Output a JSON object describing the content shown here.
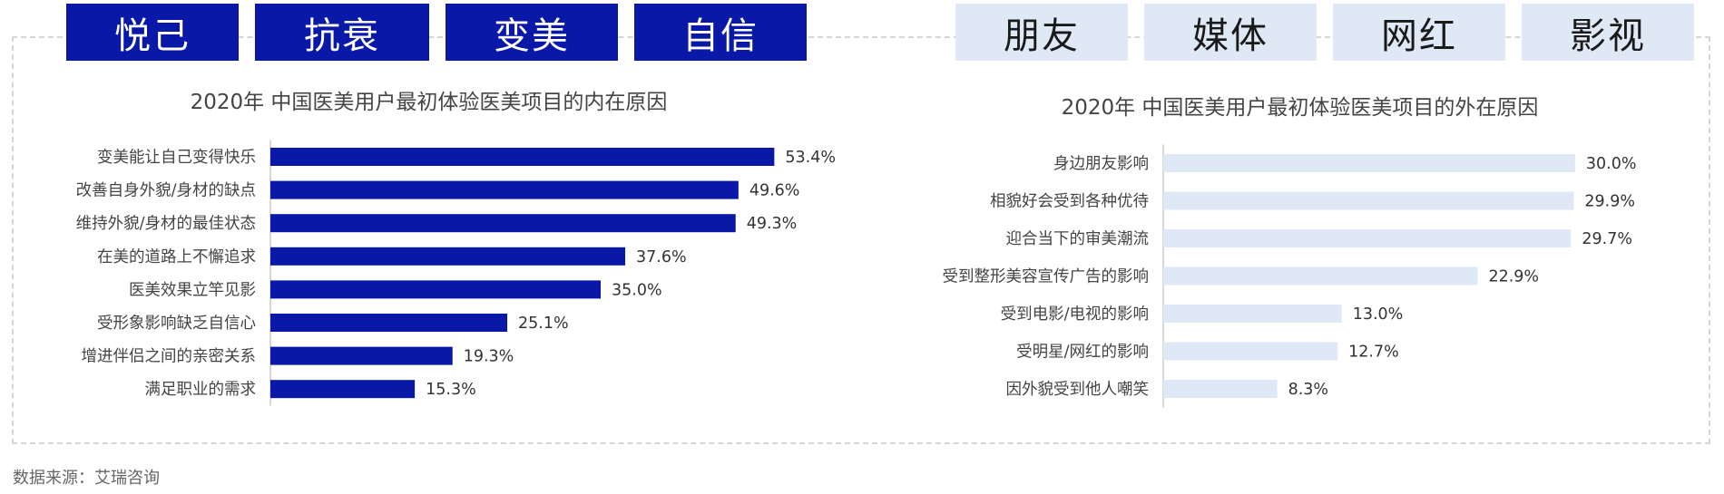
{
  "tags_left": [
    "悦己",
    "抗衰",
    "变美",
    "自信"
  ],
  "tags_right": [
    "朋友",
    "媒体",
    "网红",
    "影视"
  ],
  "source": "数据来源：艾瑞咨询",
  "colors": {
    "dark_bar": "#0a18a8",
    "light_bar": "#dfe9f5"
  },
  "chart_data": [
    {
      "type": "bar",
      "orientation": "horizontal",
      "title": "2020年 中国医美用户最初体验医美项目的内在原因",
      "categories": [
        "变美能让自己变得快乐",
        "改善自身外貌/身材的缺点",
        "维持外貌/身材的最佳状态",
        "在美的道路上不懈追求",
        "医美效果立竿见影",
        "受形象影响缺乏自信心",
        "增进伴侣之间的亲密关系",
        "满足职业的需求"
      ],
      "values": [
        53.4,
        49.6,
        49.3,
        37.6,
        35.0,
        25.1,
        19.3,
        15.3
      ],
      "value_labels": [
        "53.4%",
        "49.6%",
        "49.3%",
        "37.6%",
        "35.0%",
        "25.1%",
        "19.3%",
        "15.3%"
      ],
      "unit": "%",
      "color": "#0a18a8"
    },
    {
      "type": "bar",
      "orientation": "horizontal",
      "title": "2020年 中国医美用户最初体验医美项目的外在原因",
      "categories": [
        "身边朋友影响",
        "相貌好会受到各种优待",
        "迎合当下的审美潮流",
        "受到整形美容宣传广告的影响",
        "受到电影/电视的影响",
        "受明星/网红的影响",
        "因外貌受到他人嘲笑"
      ],
      "values": [
        30.0,
        29.9,
        29.7,
        22.9,
        13.0,
        12.7,
        8.3
      ],
      "value_labels": [
        "30.0%",
        "29.9%",
        "29.7%",
        "22.9%",
        "13.0%",
        "12.7%",
        "8.3%"
      ],
      "unit": "%",
      "color": "#dfe9f5"
    }
  ]
}
